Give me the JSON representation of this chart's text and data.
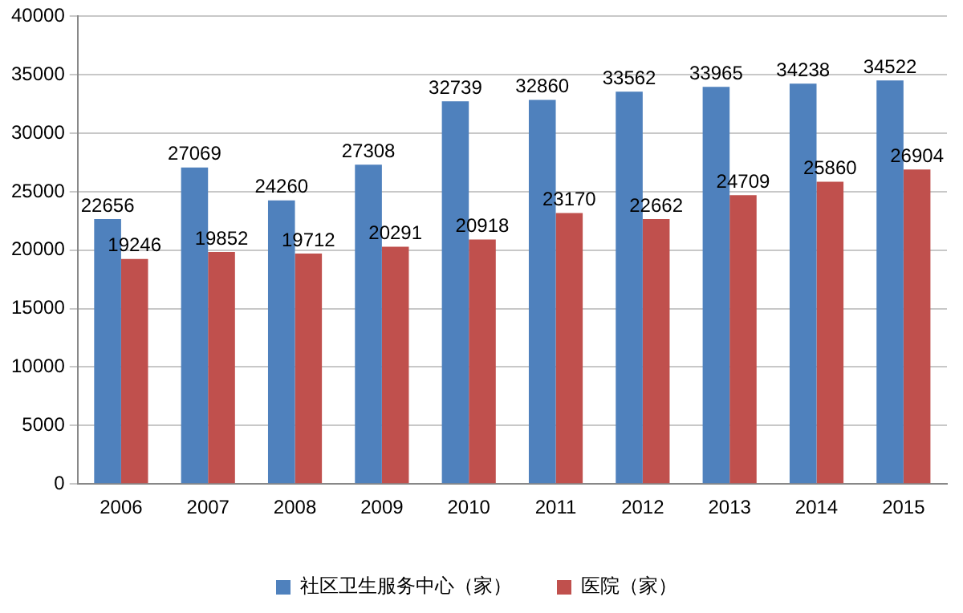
{
  "chart_data": {
    "type": "bar",
    "categories": [
      "2006",
      "2007",
      "2008",
      "2009",
      "2010",
      "2011",
      "2012",
      "2013",
      "2014",
      "2015"
    ],
    "series": [
      {
        "name": "社区卫生服务中心（家）",
        "color": "#4f81bd",
        "values": [
          22656,
          27069,
          24260,
          27308,
          32739,
          32860,
          33562,
          33965,
          34238,
          34522
        ]
      },
      {
        "name": "医院（家）",
        "color": "#c0504d",
        "values": [
          19246,
          19852,
          19712,
          20291,
          20918,
          23170,
          22662,
          24709,
          25860,
          26904
        ]
      }
    ],
    "ylim": [
      0,
      40000
    ],
    "yticks": [
      0,
      5000,
      10000,
      15000,
      20000,
      25000,
      30000,
      35000,
      40000
    ],
    "grid": "y",
    "legend": "bottom",
    "data_labels": true
  }
}
